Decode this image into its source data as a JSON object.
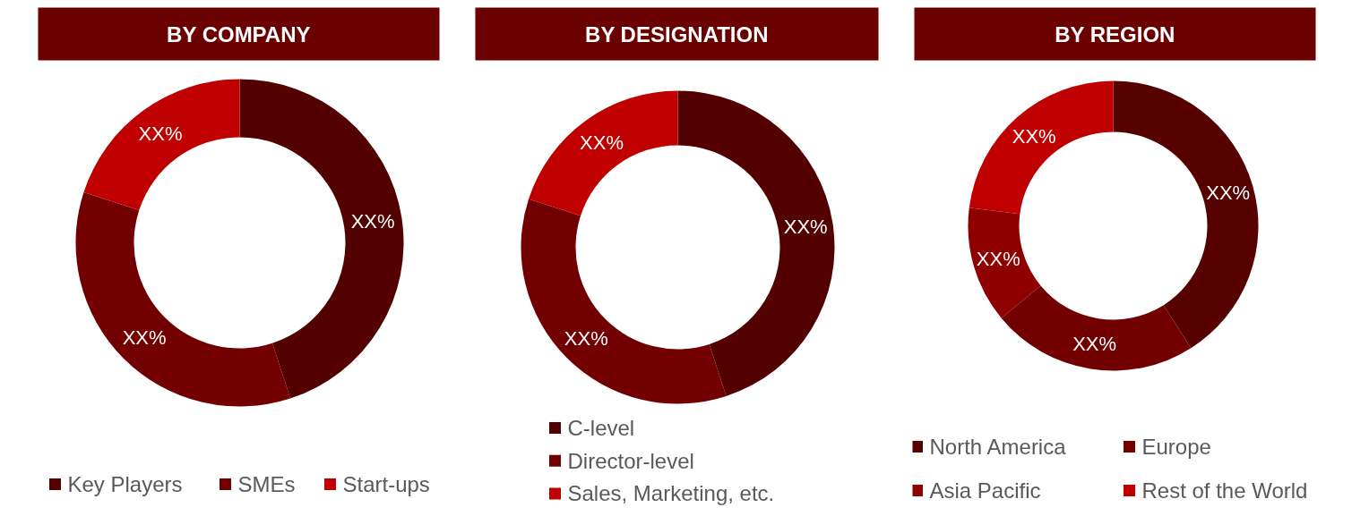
{
  "chart_data": [
    {
      "type": "donut",
      "title": "BY COMPANY",
      "categories": [
        "Key Players",
        "SMEs",
        "Start-ups"
      ],
      "values": [
        45,
        35,
        20
      ],
      "colors": [
        "#530000",
        "#720000",
        "#c00000"
      ],
      "value_labels": [
        "XX%",
        "XX%",
        "XX%"
      ],
      "legend": "bottom"
    },
    {
      "type": "donut",
      "title": "BY DESIGNATION",
      "categories": [
        "C-level",
        "Director-level",
        "Sales, Marketing, etc."
      ],
      "values": [
        45,
        35,
        20
      ],
      "colors": [
        "#530000",
        "#720000",
        "#c00000"
      ],
      "value_labels": [
        "XX%",
        "XX%",
        "XX%"
      ],
      "legend": "bottom"
    },
    {
      "type": "donut",
      "title": "BY REGION",
      "categories": [
        "North America",
        "Europe",
        "Asia Pacific",
        "Rest of the World"
      ],
      "values": [
        41,
        23,
        13,
        23
      ],
      "colors": [
        "#560000",
        "#720000",
        "#8f0000",
        "#c00000"
      ],
      "value_labels": [
        "XX%",
        "XX%",
        "XX%",
        "XX%"
      ],
      "legend": "bottom"
    }
  ]
}
